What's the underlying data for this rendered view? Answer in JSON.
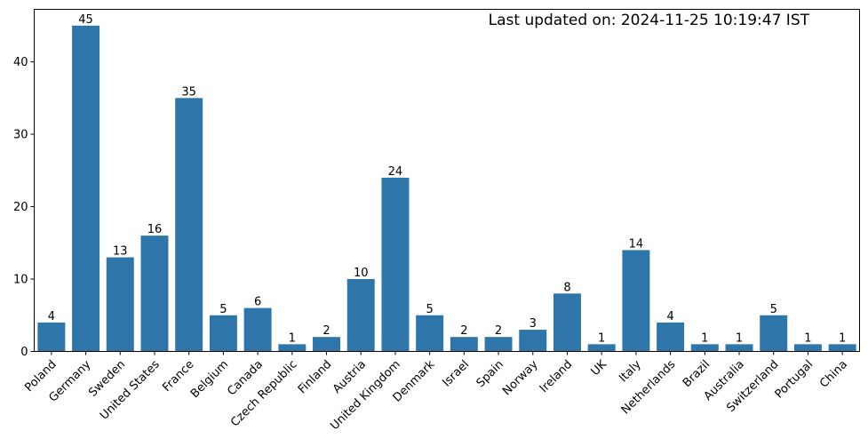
{
  "chart_data": {
    "type": "bar",
    "categories": [
      "Poland",
      "Germany",
      "Sweden",
      "United States",
      "France",
      "Belgium",
      "Canada",
      "Czech Republic",
      "Finland",
      "Austria",
      "United Kingdom",
      "Denmark",
      "Israel",
      "Spain",
      "Norway",
      "Ireland",
      "UK",
      "Italy",
      "Netherlands",
      "Brazil",
      "Australia",
      "Switzerland",
      "Portugal",
      "China"
    ],
    "values": [
      4,
      45,
      13,
      16,
      35,
      5,
      6,
      1,
      2,
      10,
      24,
      5,
      2,
      2,
      3,
      8,
      1,
      14,
      4,
      1,
      1,
      5,
      1,
      1
    ],
    "yticks": [
      0,
      10,
      20,
      30,
      40
    ],
    "ylim": [
      0,
      47.25
    ],
    "annotation": "Last updated on: 2024-11-25 10:19:47 IST",
    "bar_color": "#2e75aa",
    "grid": false,
    "legend": false,
    "xtick_rotation": 45
  }
}
